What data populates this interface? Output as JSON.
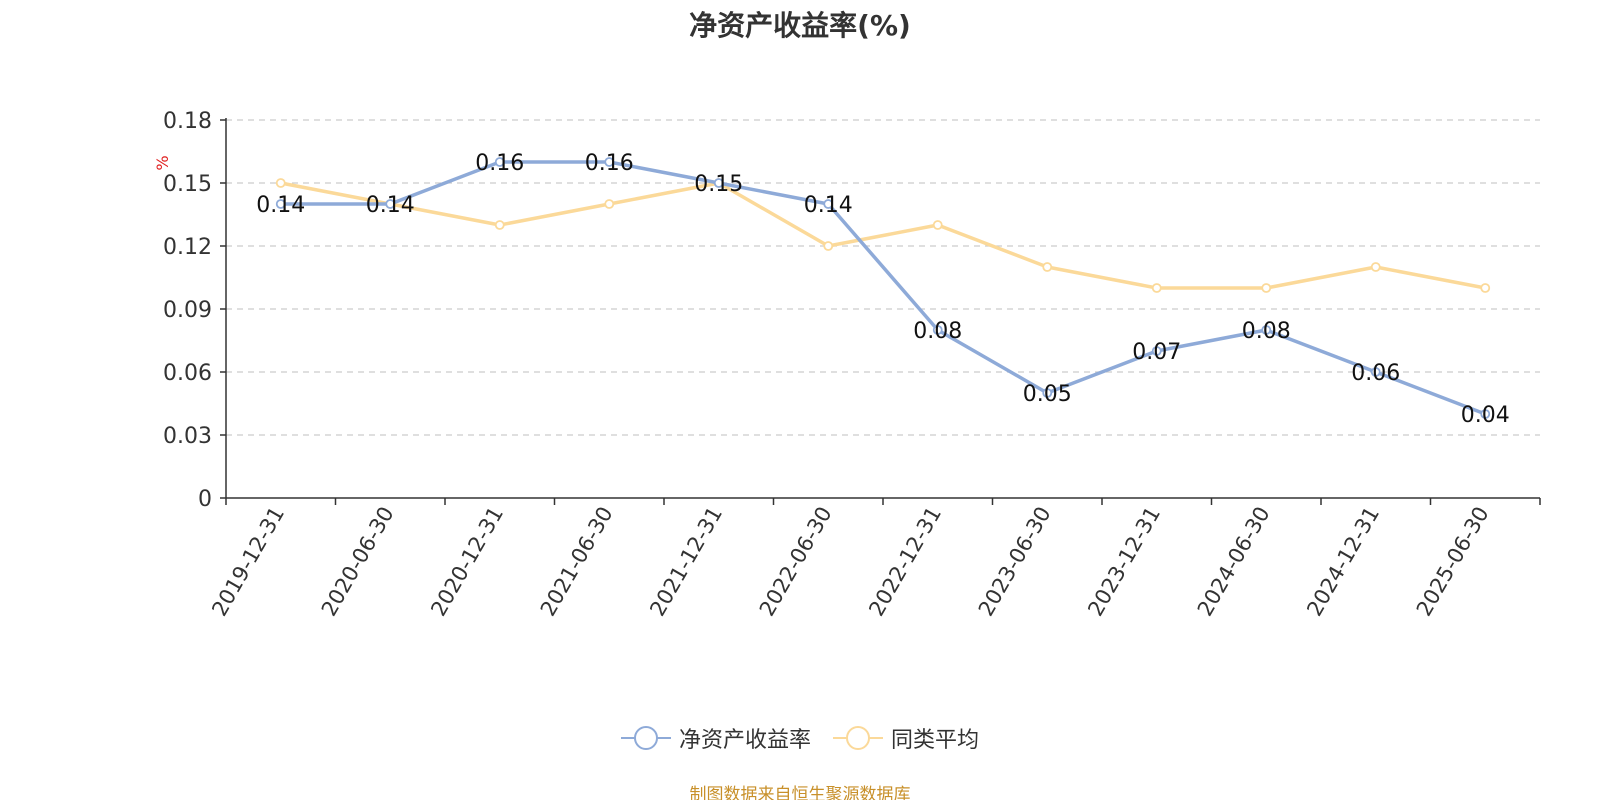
{
  "chart_data": {
    "type": "line",
    "title": "净资产收益率(%)",
    "ylabel": "%",
    "xlabel": "",
    "categories": [
      "2019-12-31",
      "2020-06-30",
      "2020-12-31",
      "2021-06-30",
      "2021-12-31",
      "2022-06-30",
      "2022-12-31",
      "2023-06-30",
      "2023-12-31",
      "2024-06-30",
      "2024-12-31",
      "2025-06-30"
    ],
    "ylim": [
      0,
      0.18
    ],
    "yticks": [
      "0",
      "0.03",
      "0.06",
      "0.09",
      "0.12",
      "0.15",
      "0.18"
    ],
    "grid": true,
    "legend_position": "bottom",
    "series": [
      {
        "name": "净资产收益率",
        "color": "#8eaad8",
        "values": [
          0.14,
          0.14,
          0.16,
          0.16,
          0.15,
          0.14,
          0.08,
          0.05,
          0.07,
          0.08,
          0.06,
          0.04
        ],
        "labels": [
          "0.14",
          "0.14",
          "0.16",
          "0.16",
          "0.15",
          "0.14",
          "0.08",
          "0.05",
          "0.07",
          "0.08",
          "0.06",
          "0.04"
        ]
      },
      {
        "name": "同类平均",
        "color": "#fbd999",
        "values": [
          0.15,
          0.14,
          0.13,
          0.14,
          0.15,
          0.12,
          0.13,
          0.11,
          0.1,
          0.1,
          0.11,
          0.1
        ]
      }
    ]
  },
  "legend": {
    "items": [
      {
        "label": "净资产收益率",
        "color": "#8eaad8"
      },
      {
        "label": "同类平均",
        "color": "#fbd999"
      }
    ]
  },
  "footer": {
    "source": "制图数据来自恒生聚源数据库"
  }
}
